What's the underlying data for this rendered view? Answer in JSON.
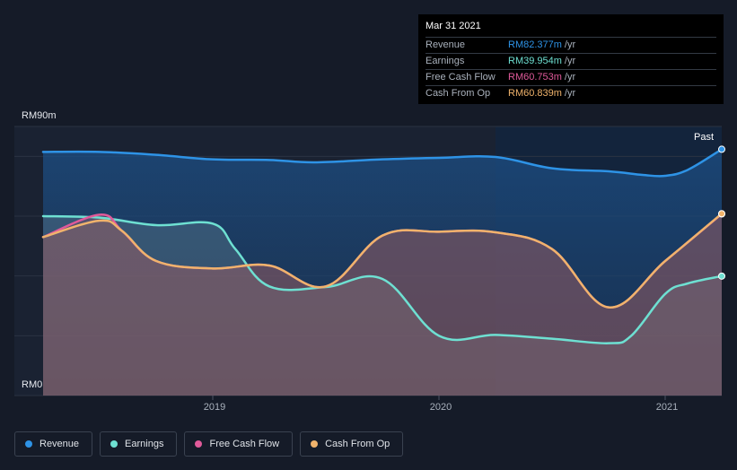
{
  "tooltip": {
    "date": "Mar 31 2021",
    "rows": [
      {
        "name": "Revenue",
        "value": "RM82.377m",
        "unit": "/yr",
        "color": "#2e93e6"
      },
      {
        "name": "Earnings",
        "value": "RM39.954m",
        "unit": "/yr",
        "color": "#6ee0d2"
      },
      {
        "name": "Free Cash Flow",
        "value": "RM60.753m",
        "unit": "/yr",
        "color": "#e05a9a"
      },
      {
        "name": "Cash From Op",
        "value": "RM60.839m",
        "unit": "/yr",
        "color": "#f0b36c"
      }
    ]
  },
  "past_label": "Past",
  "legend": [
    {
      "label": "Revenue",
      "color": "#2e93e6"
    },
    {
      "label": "Earnings",
      "color": "#6ee0d2"
    },
    {
      "label": "Free Cash Flow",
      "color": "#e05a9a"
    },
    {
      "label": "Cash From Op",
      "color": "#f0b36c"
    }
  ],
  "chart_data": {
    "type": "area",
    "y_max_label": "RM90m",
    "y_min_label": "RM0",
    "ylim": [
      0,
      90
    ],
    "xlim": [
      2018.25,
      2021.25
    ],
    "x_ticks": [
      "2019",
      "2020",
      "2021"
    ],
    "past_region_start": 2020.25,
    "grid": true,
    "series": [
      {
        "name": "Revenue",
        "color": "#2e93e6",
        "points": [
          [
            2018.25,
            81.5
          ],
          [
            2018.5,
            81.5
          ],
          [
            2018.75,
            80.5
          ],
          [
            2019.0,
            79
          ],
          [
            2019.25,
            78.8
          ],
          [
            2019.45,
            78
          ],
          [
            2019.75,
            79
          ],
          [
            2020.0,
            79.5
          ],
          [
            2020.25,
            79.8
          ],
          [
            2020.5,
            76
          ],
          [
            2020.75,
            75
          ],
          [
            2020.9,
            73.8
          ],
          [
            2021.0,
            73.5
          ],
          [
            2021.1,
            75.5
          ],
          [
            2021.25,
            82.377
          ]
        ]
      },
      {
        "name": "Earnings",
        "color": "#6ee0d2",
        "points": [
          [
            2018.25,
            60
          ],
          [
            2018.5,
            59.5
          ],
          [
            2018.75,
            57
          ],
          [
            2019.0,
            57.5
          ],
          [
            2019.1,
            49
          ],
          [
            2019.25,
            36.5
          ],
          [
            2019.5,
            36.3
          ],
          [
            2019.75,
            39
          ],
          [
            2020.0,
            20
          ],
          [
            2020.25,
            20.3
          ],
          [
            2020.5,
            19
          ],
          [
            2020.75,
            17.5
          ],
          [
            2020.85,
            20
          ],
          [
            2021.0,
            34
          ],
          [
            2021.1,
            37.5
          ],
          [
            2021.25,
            39.954
          ]
        ]
      },
      {
        "name": "Free Cash Flow",
        "color": "#e05a9a",
        "points": [
          [
            2018.25,
            53
          ],
          [
            2018.5,
            60.5
          ],
          [
            2018.6,
            55
          ],
          [
            2018.75,
            45
          ],
          [
            2019.0,
            42.5
          ],
          [
            2019.25,
            43.5
          ],
          [
            2019.5,
            36.5
          ],
          [
            2019.75,
            53.5
          ],
          [
            2020.0,
            54.8
          ],
          [
            2020.25,
            54.6
          ],
          [
            2020.5,
            49
          ],
          [
            2020.75,
            29.5
          ],
          [
            2021.0,
            45
          ],
          [
            2021.25,
            60.753
          ]
        ]
      },
      {
        "name": "Cash From Op",
        "color": "#f0b36c",
        "points": [
          [
            2018.25,
            53
          ],
          [
            2018.5,
            58.5
          ],
          [
            2018.6,
            55
          ],
          [
            2018.75,
            45
          ],
          [
            2019.0,
            42.5
          ],
          [
            2019.25,
            43.5
          ],
          [
            2019.5,
            36.5
          ],
          [
            2019.75,
            53.5
          ],
          [
            2020.0,
            54.8
          ],
          [
            2020.25,
            54.6
          ],
          [
            2020.5,
            49
          ],
          [
            2020.75,
            29.5
          ],
          [
            2021.0,
            45
          ],
          [
            2021.25,
            60.839
          ]
        ]
      }
    ]
  }
}
